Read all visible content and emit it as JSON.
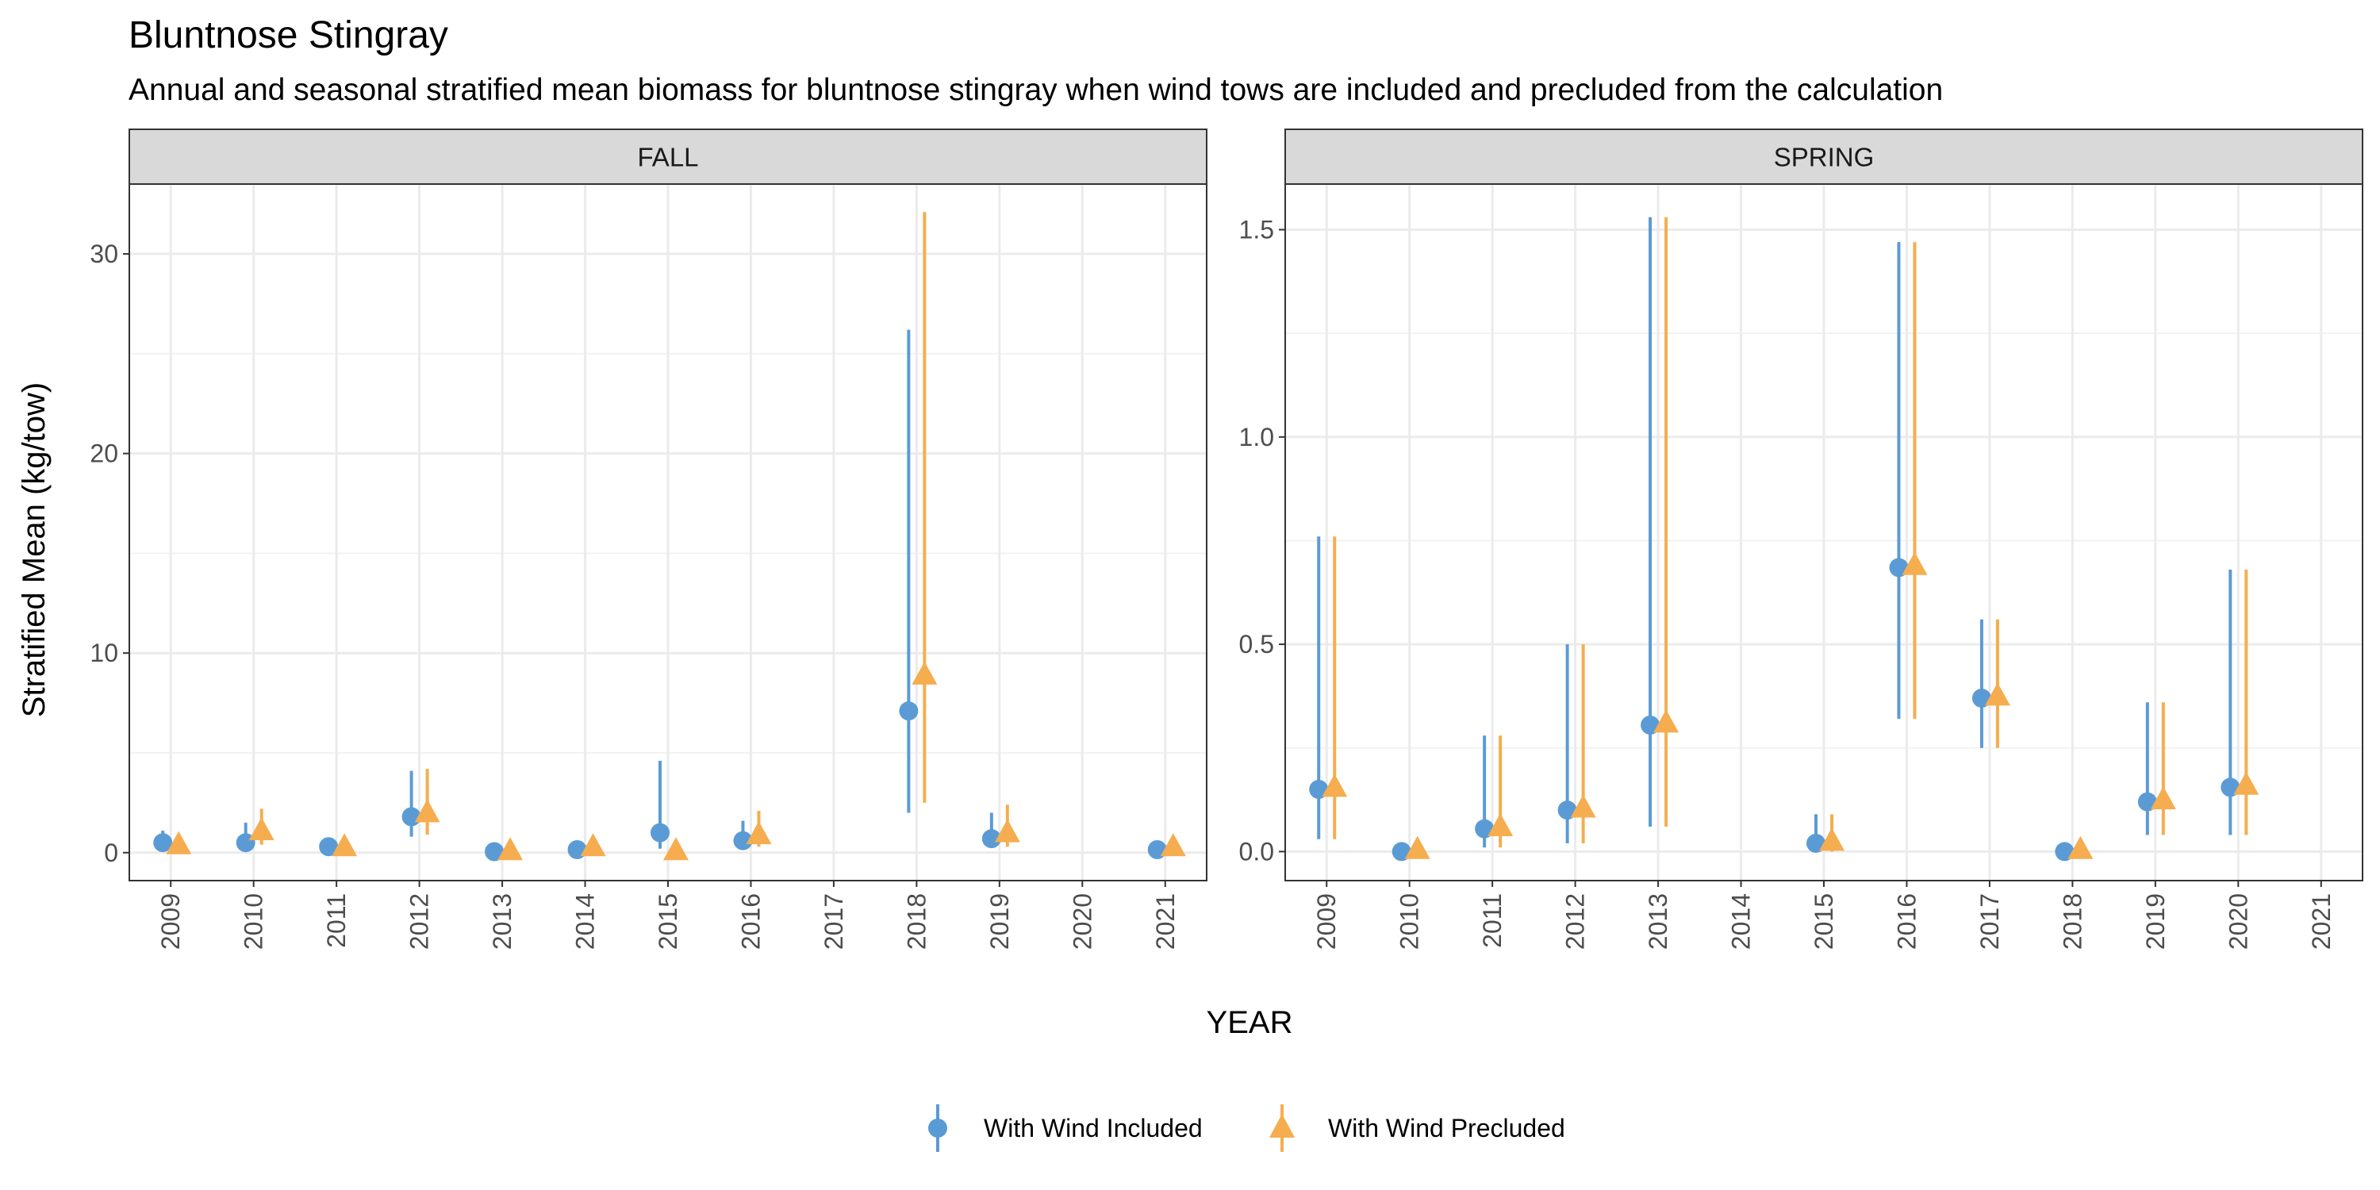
{
  "chart_data": {
    "type": "scatter",
    "title": "Bluntnose Stingray",
    "subtitle": "Annual and seasonal stratified mean biomass for bluntnose stingray when wind tows are included and precluded from the calculation",
    "xlabel": "YEAR",
    "ylabel": "Stratified Mean (kg/tow)",
    "x_categories": [
      "2009",
      "2010",
      "2011",
      "2012",
      "2013",
      "2014",
      "2015",
      "2016",
      "2017",
      "2018",
      "2019",
      "2020",
      "2021"
    ],
    "grid": true,
    "legend_position": "bottom",
    "series_styles": [
      {
        "name": "With Wind Included",
        "color": "#5B9BD5",
        "shape": "circle"
      },
      {
        "name": "With Wind Precluded",
        "color": "#F5AD4F",
        "shape": "triangle"
      }
    ],
    "panels": [
      {
        "label": "FALL",
        "ylim": [
          -1.4,
          33.5
        ],
        "yticks": [
          0,
          10,
          20,
          30
        ],
        "series": [
          {
            "name": "With Wind Included",
            "points": [
              {
                "x": "2009",
                "y": 0.5,
                "lo": 0.1,
                "hi": 1.1
              },
              {
                "x": "2010",
                "y": 0.5,
                "lo": 0.1,
                "hi": 1.5
              },
              {
                "x": "2011",
                "y": 0.3,
                "lo": 0.1,
                "hi": 0.6
              },
              {
                "x": "2012",
                "y": 1.8,
                "lo": 0.8,
                "hi": 4.1
              },
              {
                "x": "2013",
                "y": 0.05,
                "lo": 0.0,
                "hi": 0.2
              },
              {
                "x": "2014",
                "y": 0.15,
                "lo": 0.0,
                "hi": 0.4
              },
              {
                "x": "2015",
                "y": 1.0,
                "lo": 0.2,
                "hi": 4.6
              },
              {
                "x": "2016",
                "y": 0.6,
                "lo": 0.2,
                "hi": 1.6
              },
              {
                "x": "2018",
                "y": 7.1,
                "lo": 2.0,
                "hi": 26.2
              },
              {
                "x": "2019",
                "y": 0.7,
                "lo": 0.3,
                "hi": 2.0
              },
              {
                "x": "2021",
                "y": 0.15,
                "lo": 0.0,
                "hi": 0.4
              }
            ]
          },
          {
            "name": "With Wind Precluded",
            "points": [
              {
                "x": "2009",
                "y": 0.4,
                "lo": 0.1,
                "hi": 0.8
              },
              {
                "x": "2010",
                "y": 1.1,
                "lo": 0.4,
                "hi": 2.2
              },
              {
                "x": "2011",
                "y": 0.3,
                "lo": 0.1,
                "hi": 0.6
              },
              {
                "x": "2012",
                "y": 2.0,
                "lo": 0.9,
                "hi": 4.2
              },
              {
                "x": "2013",
                "y": 0.1,
                "lo": 0.0,
                "hi": 0.3
              },
              {
                "x": "2014",
                "y": 0.3,
                "lo": 0.0,
                "hi": 0.6
              },
              {
                "x": "2015",
                "y": 0.1,
                "lo": 0.0,
                "hi": 0.3
              },
              {
                "x": "2016",
                "y": 0.9,
                "lo": 0.3,
                "hi": 2.1
              },
              {
                "x": "2018",
                "y": 8.9,
                "lo": 2.5,
                "hi": 32.1
              },
              {
                "x": "2019",
                "y": 1.0,
                "lo": 0.3,
                "hi": 2.4
              },
              {
                "x": "2021",
                "y": 0.3,
                "lo": 0.0,
                "hi": 0.6
              }
            ]
          }
        ]
      },
      {
        "label": "SPRING",
        "ylim": [
          -0.07,
          1.61
        ],
        "yticks": [
          0.0,
          0.5,
          1.0,
          1.5
        ],
        "ytick_labels": [
          "0.0",
          "0.5",
          "1.0",
          "1.5"
        ],
        "series": [
          {
            "name": "With Wind Included",
            "points": [
              {
                "x": "2009",
                "y": 0.15,
                "lo": 0.03,
                "hi": 0.76
              },
              {
                "x": "2010",
                "y": 0.0,
                "lo": 0.0,
                "hi": 0.01
              },
              {
                "x": "2011",
                "y": 0.055,
                "lo": 0.01,
                "hi": 0.28
              },
              {
                "x": "2012",
                "y": 0.1,
                "lo": 0.02,
                "hi": 0.5
              },
              {
                "x": "2013",
                "y": 0.305,
                "lo": 0.06,
                "hi": 1.53
              },
              {
                "x": "2015",
                "y": 0.02,
                "lo": 0.0,
                "hi": 0.09
              },
              {
                "x": "2016",
                "y": 0.685,
                "lo": 0.32,
                "hi": 1.47
              },
              {
                "x": "2017",
                "y": 0.37,
                "lo": 0.25,
                "hi": 0.56
              },
              {
                "x": "2018",
                "y": 0.0,
                "lo": 0.0,
                "hi": 0.01
              },
              {
                "x": "2019",
                "y": 0.12,
                "lo": 0.04,
                "hi": 0.36
              },
              {
                "x": "2020",
                "y": 0.155,
                "lo": 0.04,
                "hi": 0.68
              }
            ]
          },
          {
            "name": "With Wind Precluded",
            "points": [
              {
                "x": "2009",
                "y": 0.155,
                "lo": 0.03,
                "hi": 0.76
              },
              {
                "x": "2010",
                "y": 0.005,
                "lo": 0.0,
                "hi": 0.01
              },
              {
                "x": "2011",
                "y": 0.06,
                "lo": 0.01,
                "hi": 0.28
              },
              {
                "x": "2012",
                "y": 0.105,
                "lo": 0.02,
                "hi": 0.5
              },
              {
                "x": "2013",
                "y": 0.31,
                "lo": 0.06,
                "hi": 1.53
              },
              {
                "x": "2015",
                "y": 0.025,
                "lo": 0.0,
                "hi": 0.09
              },
              {
                "x": "2016",
                "y": 0.69,
                "lo": 0.32,
                "hi": 1.47
              },
              {
                "x": "2017",
                "y": 0.375,
                "lo": 0.25,
                "hi": 0.56
              },
              {
                "x": "2018",
                "y": 0.005,
                "lo": 0.0,
                "hi": 0.01
              },
              {
                "x": "2019",
                "y": 0.125,
                "lo": 0.04,
                "hi": 0.36
              },
              {
                "x": "2020",
                "y": 0.16,
                "lo": 0.04,
                "hi": 0.68
              }
            ]
          }
        ]
      }
    ]
  }
}
